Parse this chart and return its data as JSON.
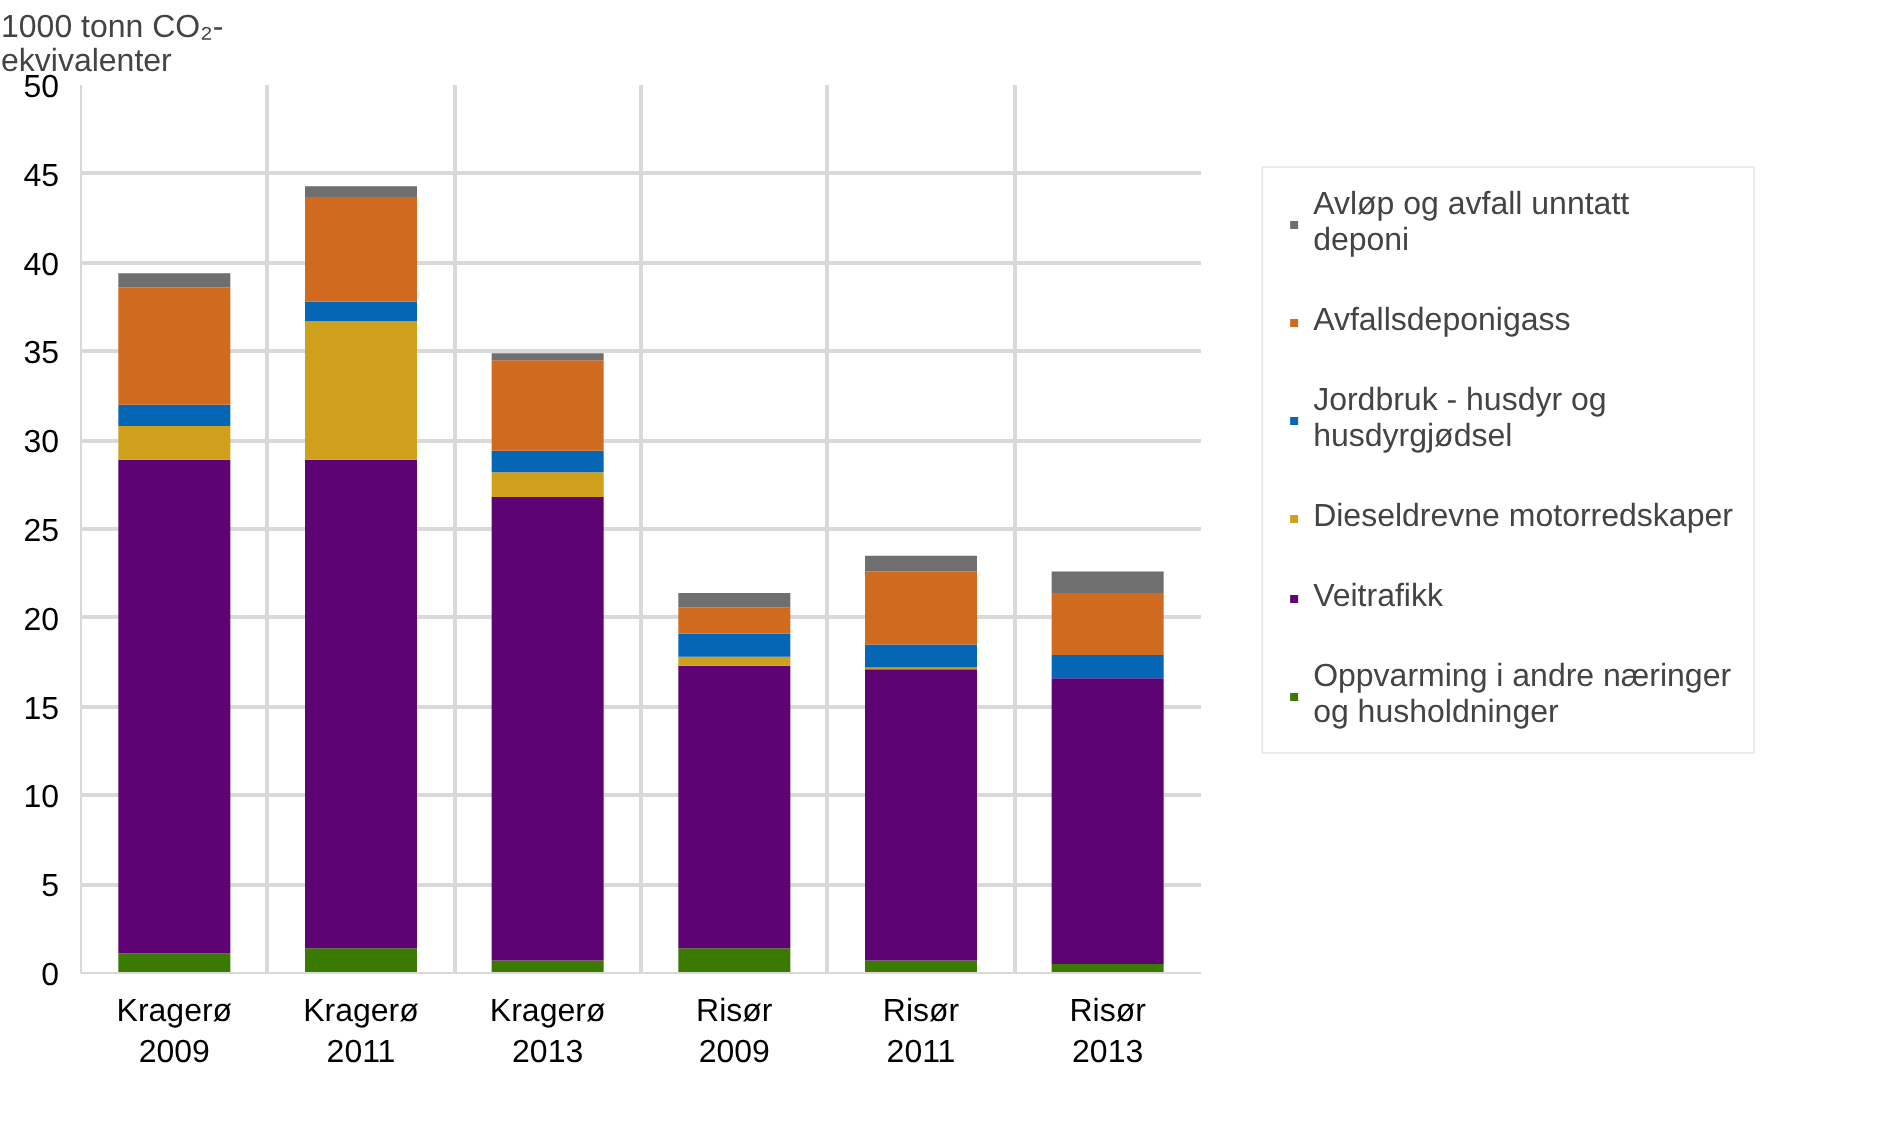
{
  "chart_data": {
    "type": "bar",
    "stacked": true,
    "ylabel": "1000 tonn CO₂-\nekvivalenter",
    "categories": [
      "Kragerø\n2009",
      "Kragerø\n2011",
      "Kragerø\n2013",
      "Risør\n2009",
      "Risør\n2011",
      "Risør\n2013"
    ],
    "series": [
      {
        "name": "Oppvarming i andre næringer og husholdninger",
        "color": "#3b7a00",
        "values": [
          1.1,
          1.4,
          0.7,
          1.4,
          0.7,
          0.5
        ]
      },
      {
        "name": "Veitrafikk",
        "color": "#5e0373",
        "values": [
          27.8,
          27.5,
          26.1,
          15.9,
          16.4,
          16.1
        ]
      },
      {
        "name": "Dieseldrevne motorredskaper",
        "color": "#cfa01b",
        "values": [
          1.9,
          7.8,
          1.4,
          0.5,
          0.1,
          0
        ]
      },
      {
        "name": "Jordbruk - husdyr og husdyrgjødsel",
        "color": "#0566b6",
        "values": [
          1.2,
          1.1,
          1.2,
          1.3,
          1.3,
          1.3
        ]
      },
      {
        "name": "Avfallsdeponigass",
        "color": "#d06a1e",
        "values": [
          6.6,
          5.9,
          5.1,
          1.5,
          4.1,
          3.5
        ]
      },
      {
        "name": "Avløp og avfall unntatt deponi",
        "color": "#6f6f6f",
        "values": [
          0.8,
          0.6,
          0.4,
          0.8,
          0.9,
          1.2
        ]
      }
    ],
    "ylim": [
      0,
      50
    ],
    "yticks": [
      0,
      5,
      10,
      15,
      20,
      25,
      30,
      35,
      40,
      45,
      50
    ],
    "grid": true,
    "legend": "right"
  }
}
